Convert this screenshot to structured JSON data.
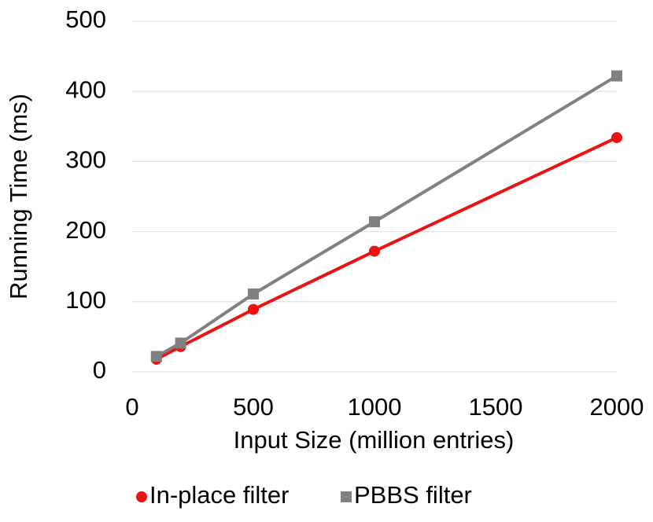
{
  "chart_data": {
    "type": "line",
    "x_label": "Input Size (million entries)",
    "y_label": "Running Time (ms)",
    "x": [
      100,
      200,
      500,
      1000,
      2000
    ],
    "series": [
      {
        "name": "In-place filter",
        "color": "#ee1111",
        "marker": "circle",
        "values": [
          18,
          36,
          89,
          172,
          334
        ]
      },
      {
        "name": "PBBS filter",
        "color": "#808080",
        "marker": "square",
        "values": [
          22,
          41,
          111,
          214,
          422
        ]
      }
    ],
    "xlim": [
      0,
      2000
    ],
    "xticks": [
      0,
      500,
      1000,
      1500,
      2000
    ],
    "ylim": [
      0,
      500
    ],
    "yticks": [
      0,
      100,
      200,
      300,
      400,
      500
    ],
    "grid": true,
    "legend": "bottom"
  }
}
